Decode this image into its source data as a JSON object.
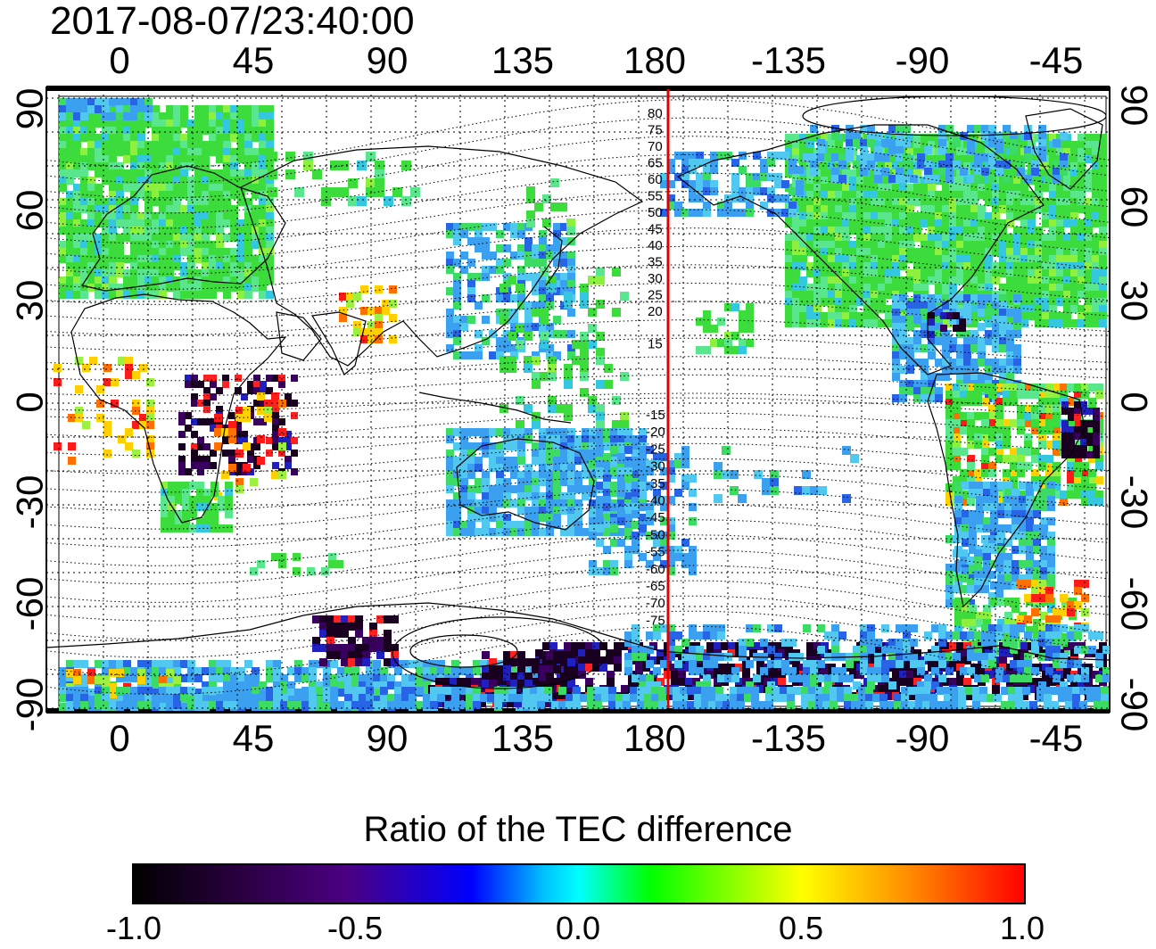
{
  "title": "2017-08-07/23:40:00",
  "x_ticks": [
    "0",
    "45",
    "90",
    "135",
    "180",
    "-135",
    "-90",
    "-45"
  ],
  "y_ticks": [
    "90",
    "60",
    "30",
    "0",
    "-30",
    "-60",
    "-90"
  ],
  "mlat_labels_north": [
    "80",
    "75",
    "70",
    "65",
    "60",
    "55",
    "50",
    "45",
    "40",
    "35",
    "30",
    "25",
    "20",
    "15"
  ],
  "mlat_labels_south": [
    "-15",
    "-20",
    "-25",
    "-30",
    "-35",
    "-40",
    "-45",
    "-50",
    "-55",
    "-60",
    "-65",
    "-70",
    "-75"
  ],
  "colorbar": {
    "title": "Ratio of the TEC difference",
    "ticks": [
      "-1.0",
      "-0.5",
      "0.0",
      "0.5",
      "1.0"
    ],
    "range": [
      -1.0,
      1.0
    ],
    "colors": [
      "#000000",
      "#2a0040",
      "#4b0082",
      "#0000ff",
      "#00bfff",
      "#00ffff",
      "#00ff00",
      "#ffff00",
      "#ff8c00",
      "#ff0000"
    ]
  },
  "marker_line": {
    "longitude": 185,
    "color": "#e00000"
  }
}
